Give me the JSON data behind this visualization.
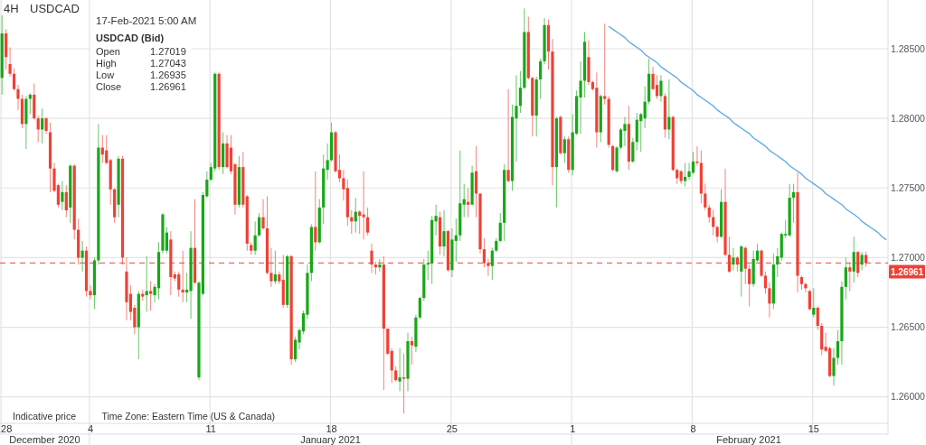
{
  "chart_data": {
    "type": "candlestick",
    "title": "USDCAD",
    "subtitle": "4H",
    "categories": [
      "28",
      null,
      null,
      null,
      null,
      null,
      null,
      null,
      null,
      null,
      null,
      null,
      null,
      null,
      null,
      null,
      null,
      null,
      null,
      null,
      null,
      null,
      "4",
      null,
      null,
      null,
      null,
      null,
      null,
      null,
      null,
      null,
      null,
      null,
      null,
      null,
      null,
      null,
      null,
      null,
      null,
      null,
      null,
      null,
      null,
      null,
      null,
      null,
      null,
      null,
      null,
      null,
      "11",
      null,
      null,
      null,
      null,
      null,
      null,
      null,
      null,
      null,
      null,
      null,
      null,
      null,
      null,
      null,
      null,
      null,
      null,
      null,
      null,
      null,
      null,
      null,
      null,
      null,
      null,
      null,
      null,
      null,
      "18",
      null,
      null,
      null,
      null,
      null,
      null,
      null,
      null,
      null,
      null,
      null,
      null,
      null,
      null,
      null,
      null,
      null,
      null,
      null,
      null,
      null,
      null,
      null,
      null,
      null,
      null,
      null,
      null,
      null,
      "25",
      null,
      null,
      null,
      null,
      null,
      null,
      null,
      null,
      null,
      null,
      null,
      null,
      null,
      null,
      null,
      null,
      null,
      null,
      null,
      null,
      null,
      null,
      null,
      null,
      null,
      null,
      null,
      null,
      null,
      "1",
      null,
      null,
      null,
      null,
      null,
      null,
      null,
      null,
      null,
      null,
      null,
      null,
      null,
      null,
      null,
      null,
      null,
      null,
      null,
      null,
      null,
      null,
      null,
      null,
      null,
      null,
      null,
      null,
      null,
      "8",
      null,
      null,
      null,
      null,
      null,
      null,
      null,
      null,
      null,
      null,
      null,
      null,
      null,
      null,
      null,
      null,
      null,
      null,
      null,
      null,
      null,
      null,
      null,
      null,
      null,
      null,
      null,
      null,
      null,
      "15",
      null,
      null,
      null,
      null,
      null,
      null,
      null,
      null,
      null,
      null,
      null,
      null,
      null,
      null,
      null,
      null,
      null,
      null
    ],
    "ohlc": [
      [
        1.2829,
        1.2874,
        1.2817,
        1.2861
      ],
      [
        1.2861,
        1.2864,
        1.2835,
        1.2844
      ],
      [
        1.2839,
        1.2851,
        1.283,
        1.2832
      ],
      [
        1.2832,
        1.2836,
        1.282,
        1.2821
      ],
      [
        1.2821,
        1.2824,
        1.2806,
        1.2814
      ],
      [
        1.2814,
        1.2817,
        1.2793,
        1.2796
      ],
      [
        1.2796,
        1.2816,
        1.2778,
        1.2814
      ],
      [
        1.2814,
        1.2818,
        1.2803,
        1.2817
      ],
      [
        1.2817,
        1.2825,
        1.2799,
        1.28
      ],
      [
        1.28,
        1.2802,
        1.2783,
        1.2792
      ],
      [
        1.2792,
        1.2807,
        1.2782,
        1.28
      ],
      [
        1.28,
        1.2801,
        1.2789,
        1.2791
      ],
      [
        1.279,
        1.2797,
        1.2747,
        1.2764
      ],
      [
        1.2764,
        1.2768,
        1.2747,
        1.2748
      ],
      [
        1.2752,
        1.2753,
        1.2736,
        1.2738
      ],
      [
        1.274,
        1.2755,
        1.2734,
        1.2747
      ],
      [
        1.2747,
        1.2752,
        1.2729,
        1.2734
      ],
      [
        1.2736,
        1.2767,
        1.2725,
        1.2766
      ],
      [
        1.2766,
        1.2767,
        1.2713,
        1.272
      ],
      [
        1.272,
        1.2728,
        1.2695,
        1.27
      ],
      [
        1.27,
        1.2712,
        1.269,
        1.2705
      ],
      [
        1.2705,
        1.2708,
        1.2672,
        1.2676
      ],
      [
        1.2676,
        1.268,
        1.267,
        1.2673
      ],
      [
        1.2673,
        1.27,
        1.2663,
        1.2698
      ],
      [
        1.2698,
        1.2796,
        1.2695,
        1.2779
      ],
      [
        1.2779,
        1.2788,
        1.2768,
        1.2774
      ],
      [
        1.2777,
        1.2788,
        1.2767,
        1.2768
      ],
      [
        1.277,
        1.2771,
        1.2738,
        1.2749
      ],
      [
        1.2749,
        1.275,
        1.2725,
        1.2729
      ],
      [
        1.2738,
        1.2773,
        1.2729,
        1.2771
      ],
      [
        1.2771,
        1.2773,
        1.2695,
        1.27
      ],
      [
        1.269,
        1.27,
        1.2655,
        1.2668
      ],
      [
        1.2674,
        1.268,
        1.2655,
        1.2661
      ],
      [
        1.2664,
        1.2666,
        1.2645,
        1.265
      ],
      [
        1.265,
        1.2676,
        1.2627,
        1.2674
      ],
      [
        1.2674,
        1.2677,
        1.2669,
        1.2672
      ],
      [
        1.2673,
        1.2701,
        1.2661,
        1.2676
      ],
      [
        1.2676,
        1.2683,
        1.2662,
        1.2674
      ],
      [
        1.2673,
        1.2681,
        1.2668,
        1.2679
      ],
      [
        1.2678,
        1.2711,
        1.267,
        1.2704
      ],
      [
        1.2705,
        1.2732,
        1.2703,
        1.2731
      ],
      [
        1.2705,
        1.2722,
        1.2703,
        1.2718
      ],
      [
        1.2713,
        1.2719,
        1.2673,
        1.2686
      ],
      [
        1.2688,
        1.269,
        1.2683,
        1.2685
      ],
      [
        1.2688,
        1.269,
        1.2672,
        1.2677
      ],
      [
        1.2677,
        1.2705,
        1.2668,
        1.2675
      ],
      [
        1.2675,
        1.2689,
        1.2668,
        1.2677
      ],
      [
        1.2676,
        1.2719,
        1.2656,
        1.2707
      ],
      [
        1.2707,
        1.2742,
        1.2681,
        1.2682
      ],
      [
        1.2614,
        1.2683,
        1.2612,
        1.2682
      ],
      [
        1.2674,
        1.2747,
        1.2673,
        1.2745
      ],
      [
        1.2744,
        1.2762,
        1.2743,
        1.2756
      ],
      [
        1.2756,
        1.2768,
        1.2755,
        1.2765
      ],
      [
        1.2764,
        1.2833,
        1.2762,
        1.2832
      ],
      [
        1.2832,
        1.2833,
        1.2763,
        1.2765
      ],
      [
        1.2765,
        1.279,
        1.276,
        1.2782
      ],
      [
        1.2782,
        1.2788,
        1.2764,
        1.2765
      ],
      [
        1.2779,
        1.2788,
        1.276,
        1.2762
      ],
      [
        1.2767,
        1.2768,
        1.2731,
        1.2738
      ],
      [
        1.2738,
        1.2773,
        1.2736,
        1.2765
      ],
      [
        1.2765,
        1.2776,
        1.2736,
        1.2738
      ],
      [
        1.2744,
        1.2745,
        1.2705,
        1.271
      ],
      [
        1.2709,
        1.2711,
        1.2702,
        1.2705
      ],
      [
        1.2705,
        1.2726,
        1.2702,
        1.2716
      ],
      [
        1.2716,
        1.2732,
        1.2715,
        1.2729
      ],
      [
        1.2729,
        1.2742,
        1.272,
        1.2721
      ],
      [
        1.2721,
        1.2744,
        1.2688,
        1.2689
      ],
      [
        1.2689,
        1.2707,
        1.2679,
        1.2683
      ],
      [
        1.2683,
        1.2705,
        1.2681,
        1.2688
      ],
      [
        1.2688,
        1.269,
        1.2681,
        1.2683
      ],
      [
        1.2684,
        1.2702,
        1.2664,
        1.2666
      ],
      [
        1.2666,
        1.2702,
        1.2664,
        1.2701
      ],
      [
        1.2701,
        1.2702,
        1.2623,
        1.2627
      ],
      [
        1.2627,
        1.2643,
        1.2625,
        1.2641
      ],
      [
        1.2639,
        1.2649,
        1.2634,
        1.2648
      ],
      [
        1.2647,
        1.2662,
        1.2645,
        1.266
      ],
      [
        1.2659,
        1.2695,
        1.2656,
        1.2689
      ],
      [
        1.2689,
        1.2724,
        1.2683,
        1.2722
      ],
      [
        1.2722,
        1.2762,
        1.2705,
        1.2711
      ],
      [
        1.2711,
        1.2742,
        1.271,
        1.2736
      ],
      [
        1.2736,
        1.2774,
        1.2724,
        1.2764
      ],
      [
        1.2763,
        1.2782,
        1.2756,
        1.277
      ],
      [
        1.277,
        1.2797,
        1.2769,
        1.279
      ],
      [
        1.279,
        1.2791,
        1.2761,
        1.2762
      ],
      [
        1.2763,
        1.2774,
        1.2754,
        1.2757
      ],
      [
        1.2757,
        1.2763,
        1.2741,
        1.2749
      ],
      [
        1.275,
        1.2756,
        1.2723,
        1.2729
      ],
      [
        1.2729,
        1.2734,
        1.2717,
        1.2726
      ],
      [
        1.2726,
        1.2743,
        1.2718,
        1.2733
      ],
      [
        1.2733,
        1.2734,
        1.2717,
        1.273
      ],
      [
        1.2731,
        1.2762,
        1.2713,
        1.2729
      ],
      [
        1.2729,
        1.2736,
        1.2716,
        1.2718
      ],
      [
        1.2705,
        1.271,
        1.2689,
        1.2695
      ],
      [
        1.2695,
        1.2697,
        1.2688,
        1.2693
      ],
      [
        1.2693,
        1.2699,
        1.269,
        1.2695
      ],
      [
        1.2695,
        1.2701,
        1.2605,
        1.2649
      ],
      [
        1.2649,
        1.2649,
        1.263,
        1.2631
      ],
      [
        1.2633,
        1.2635,
        1.261,
        1.2619
      ],
      [
        1.2619,
        1.2622,
        1.2611,
        1.2612
      ],
      [
        1.2611,
        1.2635,
        1.2604,
        1.2614
      ],
      [
        1.2614,
        1.2631,
        1.2588,
        1.2613
      ],
      [
        1.2613,
        1.2646,
        1.2604,
        1.264
      ],
      [
        1.264,
        1.2643,
        1.2623,
        1.2637
      ],
      [
        1.2636,
        1.2659,
        1.2632,
        1.2657
      ],
      [
        1.2657,
        1.2672,
        1.2656,
        1.2671
      ],
      [
        1.2671,
        1.2699,
        1.2669,
        1.2695
      ],
      [
        1.2695,
        1.2705,
        1.2684,
        1.2696
      ],
      [
        1.2696,
        1.273,
        1.2681,
        1.2727
      ],
      [
        1.2726,
        1.2738,
        1.2716,
        1.273
      ],
      [
        1.2729,
        1.2733,
        1.2702,
        1.2708
      ],
      [
        1.2708,
        1.2734,
        1.2701,
        1.2719
      ],
      [
        1.2719,
        1.272,
        1.269,
        1.2691
      ],
      [
        1.2691,
        1.2721,
        1.2686,
        1.2713
      ],
      [
        1.2712,
        1.2728,
        1.2697,
        1.2716
      ],
      [
        1.2716,
        1.2777,
        1.2712,
        1.2739
      ],
      [
        1.2738,
        1.2753,
        1.2729,
        1.2742
      ],
      [
        1.274,
        1.275,
        1.2729,
        1.2738
      ],
      [
        1.2738,
        1.2766,
        1.2738,
        1.2761
      ],
      [
        1.2762,
        1.278,
        1.2729,
        1.2746
      ],
      [
        1.2746,
        1.2746,
        1.2703,
        1.2706
      ],
      [
        1.2706,
        1.2714,
        1.2693,
        1.2696
      ],
      [
        1.2696,
        1.2699,
        1.2687,
        1.2694
      ],
      [
        1.2694,
        1.2707,
        1.2684,
        1.2705
      ],
      [
        1.2705,
        1.2714,
        1.2704,
        1.2712
      ],
      [
        1.2712,
        1.2732,
        1.2711,
        1.2725
      ],
      [
        1.2725,
        1.2767,
        1.2712,
        1.2763
      ],
      [
        1.2763,
        1.2821,
        1.2754,
        1.2755
      ],
      [
        1.2755,
        1.281,
        1.2748,
        1.2801
      ],
      [
        1.28,
        1.2831,
        1.2769,
        1.2809
      ],
      [
        1.2809,
        1.2834,
        1.2804,
        1.2822
      ],
      [
        1.2822,
        1.2879,
        1.2821,
        1.2862
      ],
      [
        1.2862,
        1.2873,
        1.2828,
        1.2829
      ],
      [
        1.2829,
        1.283,
        1.2787,
        1.2802
      ],
      [
        1.2802,
        1.283,
        1.2787,
        1.2828
      ],
      [
        1.2828,
        1.2843,
        1.2814,
        1.2841
      ],
      [
        1.2841,
        1.2872,
        1.2839,
        1.2867
      ],
      [
        1.2867,
        1.2871,
        1.2835,
        1.2848
      ],
      [
        1.2848,
        1.2857,
        1.2752,
        1.2765
      ],
      [
        1.2765,
        1.2801,
        1.2736,
        1.28
      ],
      [
        1.2801,
        1.2802,
        1.2774,
        1.2775
      ],
      [
        1.2775,
        1.2787,
        1.2768,
        1.2785
      ],
      [
        1.2785,
        1.2787,
        1.2761,
        1.2763
      ],
      [
        1.2763,
        1.2803,
        1.2759,
        1.279
      ],
      [
        1.2789,
        1.282,
        1.2788,
        1.2816
      ],
      [
        1.2815,
        1.2841,
        1.2789,
        1.2827
      ],
      [
        1.2827,
        1.2862,
        1.2815,
        1.2855
      ],
      [
        1.2844,
        1.2856,
        1.2824,
        1.2826
      ],
      [
        1.2826,
        1.2827,
        1.282,
        1.2821
      ],
      [
        1.2822,
        1.2833,
        1.2779,
        1.279
      ],
      [
        1.279,
        1.2817,
        1.2783,
        1.2816
      ],
      [
        1.2816,
        1.2868,
        1.281,
        1.2814
      ],
      [
        1.2814,
        1.2816,
        1.2779,
        1.2781
      ],
      [
        1.278,
        1.2781,
        1.2762,
        1.2763
      ],
      [
        1.2762,
        1.278,
        1.2761,
        1.2779
      ],
      [
        1.2779,
        1.2793,
        1.2778,
        1.2792
      ],
      [
        1.2791,
        1.2801,
        1.278,
        1.2796
      ],
      [
        1.2796,
        1.2809,
        1.2763,
        1.2769
      ],
      [
        1.2769,
        1.2786,
        1.2768,
        1.2783
      ],
      [
        1.2783,
        1.2804,
        1.2777,
        1.2799
      ],
      [
        1.2798,
        1.2804,
        1.2776,
        1.2803
      ],
      [
        1.28,
        1.2823,
        1.2793,
        1.2812
      ],
      [
        1.2812,
        1.2843,
        1.281,
        1.2832
      ],
      [
        1.2832,
        1.2837,
        1.282,
        1.2821
      ],
      [
        1.2824,
        1.2831,
        1.2814,
        1.2816
      ],
      [
        1.2816,
        1.2831,
        1.2812,
        1.2827
      ],
      [
        1.2816,
        1.2818,
        1.2786,
        1.2792
      ],
      [
        1.2792,
        1.2828,
        1.2785,
        1.2801
      ],
      [
        1.2801,
        1.2802,
        1.2762,
        1.2763
      ],
      [
        1.2763,
        1.2764,
        1.2753,
        1.2757
      ],
      [
        1.2762,
        1.2763,
        1.2753,
        1.2755
      ],
      [
        1.2755,
        1.2768,
        1.2751,
        1.2758
      ],
      [
        1.2758,
        1.2768,
        1.2756,
        1.2762
      ],
      [
        1.2761,
        1.2776,
        1.276,
        1.2769
      ],
      [
        1.2769,
        1.278,
        1.2766,
        1.2768
      ],
      [
        1.2768,
        1.2777,
        1.2739,
        1.2746
      ],
      [
        1.2746,
        1.2753,
        1.2734,
        1.2736
      ],
      [
        1.2736,
        1.2738,
        1.2725,
        1.2729
      ],
      [
        1.2729,
        1.2734,
        1.2716,
        1.2722
      ],
      [
        1.2722,
        1.2723,
        1.2711,
        1.2715
      ],
      [
        1.2715,
        1.2749,
        1.2714,
        1.274
      ],
      [
        1.274,
        1.2764,
        1.2701,
        1.2702
      ],
      [
        1.2702,
        1.2715,
        1.2689,
        1.269
      ],
      [
        1.2695,
        1.2707,
        1.2691,
        1.27
      ],
      [
        1.27,
        1.2701,
        1.269,
        1.2695
      ],
      [
        1.269,
        1.2709,
        1.2672,
        1.2708
      ],
      [
        1.2707,
        1.2708,
        1.2681,
        1.2692
      ],
      [
        1.2692,
        1.2695,
        1.2665,
        1.2681
      ],
      [
        1.2681,
        1.2705,
        1.2679,
        1.2699
      ],
      [
        1.2698,
        1.271,
        1.2697,
        1.2705
      ],
      [
        1.2705,
        1.2706,
        1.2686,
        1.2687
      ],
      [
        1.2687,
        1.269,
        1.2674,
        1.2678
      ],
      [
        1.2678,
        1.2682,
        1.2657,
        1.2667
      ],
      [
        1.2667,
        1.2703,
        1.2663,
        1.2695
      ],
      [
        1.2695,
        1.2707,
        1.2686,
        1.2701
      ],
      [
        1.27,
        1.2718,
        1.2698,
        1.2717
      ],
      [
        1.2716,
        1.2727,
        1.2714,
        1.2717
      ],
      [
        1.2716,
        1.2753,
        1.2715,
        1.2743
      ],
      [
        1.2743,
        1.2753,
        1.2725,
        1.2747
      ],
      [
        1.2747,
        1.2761,
        1.2675,
        1.2687
      ],
      [
        1.2686,
        1.2687,
        1.2677,
        1.2681
      ],
      [
        1.2681,
        1.2682,
        1.2675,
        1.2678
      ],
      [
        1.2676,
        1.2677,
        1.2662,
        1.2663
      ],
      [
        1.2659,
        1.2678,
        1.2657,
        1.2664
      ],
      [
        1.2664,
        1.2665,
        1.2648,
        1.2651
      ],
      [
        1.2651,
        1.2653,
        1.263,
        1.2634
      ],
      [
        1.2636,
        1.2646,
        1.2632,
        1.2633
      ],
      [
        1.2635,
        1.2636,
        1.2614,
        1.2615
      ],
      [
        1.2615,
        1.2635,
        1.2608,
        1.2628
      ],
      [
        1.2628,
        1.2648,
        1.2623,
        1.264
      ],
      [
        1.264,
        1.2683,
        1.2623,
        1.2679
      ],
      [
        1.2679,
        1.27,
        1.267,
        1.2693
      ],
      [
        1.2693,
        1.2696,
        1.2676,
        1.269
      ],
      [
        1.269,
        1.2715,
        1.2682,
        1.2704
      ],
      [
        1.2704,
        1.2705,
        1.2686,
        1.2689
      ],
      [
        1.2695,
        1.2704,
        1.2691,
        1.2702
      ],
      [
        1.27019,
        1.27043,
        1.26935,
        1.26961
      ],
      null,
      null,
      null,
      null,
      null
    ],
    "series": [
      {
        "type": "line",
        "color": "#5aa9e6",
        "values": [
          null,
          null,
          null,
          null,
          null,
          null,
          null,
          null,
          null,
          null,
          null,
          null,
          null,
          null,
          null,
          null,
          null,
          null,
          null,
          null,
          null,
          null,
          null,
          null,
          null,
          null,
          null,
          null,
          null,
          null,
          null,
          null,
          null,
          null,
          null,
          null,
          null,
          null,
          null,
          null,
          null,
          null,
          null,
          null,
          null,
          null,
          null,
          null,
          null,
          null,
          null,
          null,
          null,
          null,
          null,
          null,
          null,
          null,
          null,
          null,
          null,
          null,
          null,
          null,
          null,
          null,
          null,
          null,
          null,
          null,
          null,
          null,
          null,
          null,
          null,
          null,
          null,
          null,
          null,
          null,
          null,
          null,
          null,
          null,
          null,
          null,
          null,
          null,
          null,
          null,
          null,
          null,
          null,
          null,
          null,
          null,
          null,
          null,
          null,
          null,
          null,
          null,
          null,
          null,
          null,
          null,
          null,
          null,
          null,
          null,
          null,
          null,
          null,
          null,
          null,
          null,
          null,
          null,
          null,
          null,
          null,
          null,
          null,
          null,
          null,
          null,
          null,
          null,
          null,
          null,
          null,
          null,
          null,
          null,
          null,
          null,
          null,
          null,
          null,
          null,
          null,
          null,
          null,
          null,
          null,
          null,
          null,
          null,
          null,
          null,
          null,
          1.2866,
          1.2864,
          1.2862,
          1.286,
          1.2858,
          1.2855,
          1.2853,
          1.2851,
          1.2849,
          1.2846,
          1.2844,
          1.2842,
          1.284,
          1.2837,
          1.2835,
          1.2833,
          1.2831,
          1.2829,
          1.2826,
          1.2824,
          1.2822,
          1.282,
          1.2817,
          1.2815,
          1.2813,
          1.2811,
          1.2809,
          1.2806,
          1.2804,
          1.2802,
          1.28,
          1.2797,
          1.2795,
          1.2793,
          1.2791,
          1.2789,
          1.2786,
          1.2784,
          1.2782,
          1.278,
          1.2777,
          1.2775,
          1.2773,
          1.2771,
          1.2769,
          1.2766,
          1.2764,
          1.2762,
          1.276,
          1.2757,
          1.2755,
          1.2753,
          1.2751,
          1.2749,
          1.2746,
          1.2744,
          1.2742,
          1.274,
          1.2738,
          1.2735,
          1.2733,
          1.2731,
          1.2729,
          1.2726,
          1.2724,
          1.2722,
          1.272,
          1.2718,
          1.2715,
          1.2713
        ]
      }
    ],
    "ylim": [
      1.2581,
      1.2885
    ],
    "yticks": [
      {
        "value": 1.26,
        "label": "1.26000"
      },
      {
        "value": 1.265,
        "label": "1.26500"
      },
      {
        "value": 1.27,
        "label": "1.27000"
      },
      {
        "value": 1.275,
        "label": "1.27500"
      },
      {
        "value": 1.28,
        "label": "1.28000"
      },
      {
        "value": 1.285,
        "label": "1.28500"
      }
    ],
    "ref_lines": [
      {
        "axis": "y",
        "value": 1.26961,
        "label": "1.26961",
        "color": "#ef4136",
        "line_style": "dashed"
      }
    ],
    "grid": true,
    "annotations": [
      "Indicative price",
      "Time Zone: Eastern Time (US & Canada)",
      "December 2020",
      "January 2021",
      "February 2021",
      "17-Feb-2021 5:00 AM",
      "USDCAD (Bid)",
      "Open",
      "1.27019",
      "High",
      "1.27043",
      "Low",
      "1.26935",
      "Close",
      "1.26961"
    ]
  }
}
